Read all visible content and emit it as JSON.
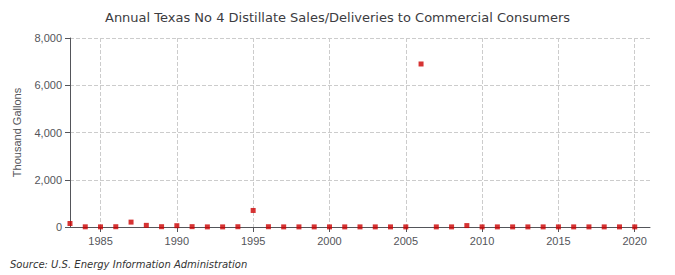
{
  "chart_data": {
    "type": "scatter",
    "title": "Annual Texas No 4 Distillate Sales/Deliveries to Commercial Consumers",
    "ylabel": "Thousand Gallons",
    "annotation": "Source: U.S. Energy Information Administration",
    "x": [
      1983,
      1984,
      1985,
      1986,
      1987,
      1988,
      1989,
      1990,
      1991,
      1992,
      1993,
      1994,
      1995,
      1996,
      1997,
      1998,
      1999,
      2000,
      2001,
      2002,
      2003,
      2004,
      2005,
      2006,
      2007,
      2008,
      2009,
      2010,
      2011,
      2012,
      2013,
      2014,
      2015,
      2016,
      2017,
      2018,
      2019,
      2020
    ],
    "values": [
      147,
      8,
      6,
      12,
      207,
      70,
      13,
      55,
      15,
      5,
      5,
      12,
      700,
      12,
      5,
      5,
      5,
      5,
      5,
      5,
      5,
      5,
      5,
      6900,
      5,
      5,
      60,
      5,
      5,
      5,
      5,
      5,
      5,
      5,
      5,
      5,
      5,
      5
    ],
    "color": "#cc0000",
    "marker": "square",
    "xlim": [
      1983,
      2021
    ],
    "xticks": [
      1985,
      1990,
      1995,
      2000,
      2005,
      2010,
      2015,
      2020
    ],
    "ylim": [
      0,
      8000
    ],
    "yticks": [
      0,
      {
        "value": 2000,
        "label": "2,000"
      },
      {
        "value": 4000,
        "label": "4,000"
      },
      {
        "value": 6000,
        "label": "6,000"
      },
      {
        "value": 8000,
        "label": "8,000"
      }
    ],
    "grid": true
  }
}
